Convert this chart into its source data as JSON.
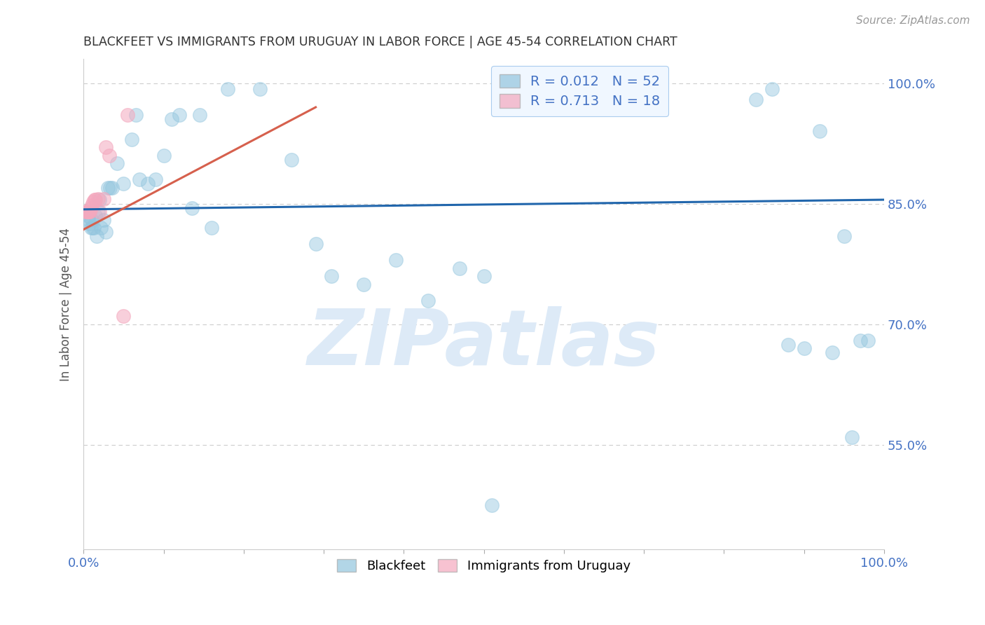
{
  "title": "BLACKFEET VS IMMIGRANTS FROM URUGUAY IN LABOR FORCE | AGE 45-54 CORRELATION CHART",
  "source": "Source: ZipAtlas.com",
  "ylabel": "In Labor Force | Age 45-54",
  "watermark": "ZIPatlas",
  "xlim": [
    0.0,
    1.0
  ],
  "ylim": [
    0.42,
    1.03
  ],
  "yticks": [
    0.55,
    0.7,
    0.85,
    1.0
  ],
  "ytick_labels": [
    "55.0%",
    "70.0%",
    "85.0%",
    "100.0%"
  ],
  "xticks": [
    0.0,
    0.1,
    0.2,
    0.3,
    0.4,
    0.5,
    0.6,
    0.7,
    0.8,
    0.9,
    1.0
  ],
  "xtick_labels": [
    "0.0%",
    "",
    "",
    "",
    "",
    "",
    "",
    "",
    "",
    "",
    "100.0%"
  ],
  "blue_R": "0.012",
  "blue_N": "52",
  "pink_R": "0.713",
  "pink_N": "18",
  "blue_scatter_x": [
    0.004,
    0.006,
    0.007,
    0.008,
    0.009,
    0.01,
    0.011,
    0.013,
    0.015,
    0.016,
    0.018,
    0.02,
    0.022,
    0.025,
    0.028,
    0.03,
    0.033,
    0.036,
    0.042,
    0.05,
    0.06,
    0.065,
    0.07,
    0.08,
    0.09,
    0.1,
    0.11,
    0.12,
    0.135,
    0.145,
    0.16,
    0.18,
    0.22,
    0.26,
    0.29,
    0.31,
    0.35,
    0.39,
    0.43,
    0.47,
    0.5,
    0.51,
    0.84,
    0.86,
    0.88,
    0.9,
    0.92,
    0.935,
    0.95,
    0.96,
    0.97,
    0.98
  ],
  "blue_scatter_y": [
    0.84,
    0.835,
    0.83,
    0.825,
    0.82,
    0.83,
    0.82,
    0.82,
    0.835,
    0.81,
    0.84,
    0.855,
    0.82,
    0.83,
    0.815,
    0.87,
    0.87,
    0.87,
    0.9,
    0.875,
    0.93,
    0.96,
    0.88,
    0.875,
    0.88,
    0.91,
    0.955,
    0.96,
    0.845,
    0.96,
    0.82,
    0.993,
    0.993,
    0.905,
    0.8,
    0.76,
    0.75,
    0.78,
    0.73,
    0.77,
    0.76,
    0.475,
    0.98,
    0.993,
    0.675,
    0.67,
    0.94,
    0.665,
    0.81,
    0.56,
    0.68,
    0.68
  ],
  "pink_scatter_x": [
    0.003,
    0.004,
    0.005,
    0.006,
    0.007,
    0.008,
    0.009,
    0.01,
    0.012,
    0.014,
    0.015,
    0.018,
    0.02,
    0.025,
    0.028,
    0.032,
    0.05,
    0.055
  ],
  "pink_scatter_y": [
    0.84,
    0.84,
    0.84,
    0.84,
    0.84,
    0.84,
    0.845,
    0.848,
    0.852,
    0.855,
    0.855,
    0.856,
    0.84,
    0.856,
    0.92,
    0.91,
    0.71,
    0.96
  ],
  "blue_line_x": [
    0.0,
    1.0
  ],
  "blue_line_y": [
    0.843,
    0.855
  ],
  "pink_line_x": [
    0.0,
    0.29
  ],
  "pink_line_y": [
    0.818,
    0.97
  ],
  "blue_color": "#92c5de",
  "pink_color": "#f4a8be",
  "blue_line_color": "#2166ac",
  "pink_line_color": "#d6604d",
  "title_color": "#333333",
  "axis_color": "#555555",
  "tick_color": "#4472c4",
  "grid_color": "#cccccc",
  "watermark_color": "#ddeaf7",
  "legend_box_color": "#f0f7ff",
  "legend_edge_color": "#aaccee"
}
